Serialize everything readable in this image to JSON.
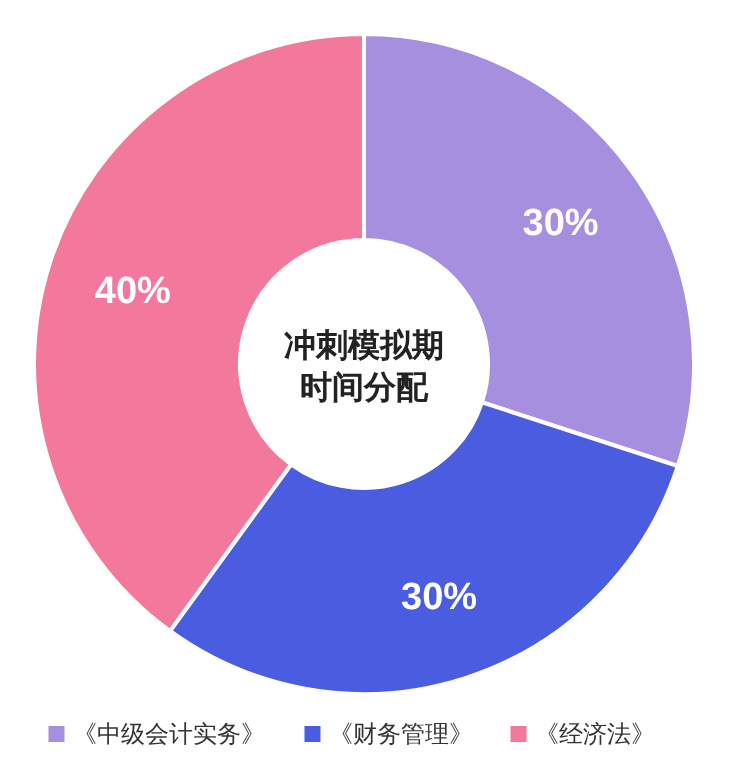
{
  "chart_data": {
    "type": "donut",
    "title": "冲刺模拟期时间分配",
    "categories": [
      "《中级会计实务》",
      "《财务管理》",
      "《经济法》"
    ],
    "values": [
      30,
      30,
      40
    ],
    "colors": [
      "#a78fe0",
      "#4a5ce0",
      "#f2789c"
    ],
    "value_labels": [
      "30%",
      "30%",
      "40%"
    ],
    "legend": "bottom"
  }
}
